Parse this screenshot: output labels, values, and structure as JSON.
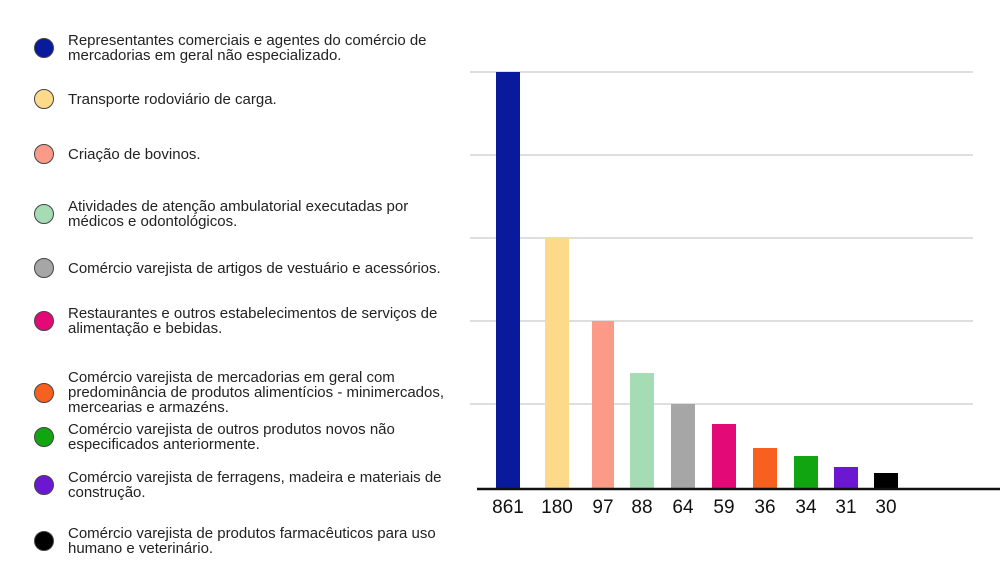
{
  "chart_data": {
    "type": "bar",
    "title": "",
    "xlabel": "",
    "ylabel": "",
    "grid": true,
    "legend_placement": "left",
    "categories": [
      "Representantes comerciais e agentes do comércio de mercadorias em geral não especializado.",
      "Transporte rodoviário de carga.",
      "Criação de bovinos.",
      "Atividades de atenção ambulatorial executadas por médicos e odontológicos.",
      "Comércio varejista de artigos de vestuário e acessórios.",
      "Restaurantes e outros estabelecimentos de serviços de alimentação e bebidas.",
      "Comércio varejista de mercadorias em geral com predominância de produtos alimentícios - minimercados, mercearias e armazéns.",
      "Comércio varejista de outros produtos novos não especificados anteriormente.",
      "Comércio varejista de ferragens, madeira e materiais de construção.",
      "Comércio varejista de produtos farmacêuticos para uso humano e veterinário."
    ],
    "values": [
      861,
      180,
      97,
      88,
      64,
      59,
      36,
      34,
      31,
      30
    ],
    "value_labels": [
      "861",
      "180",
      "97",
      "88",
      "64",
      "59",
      "36",
      "34",
      "31",
      "30"
    ],
    "colors": [
      "#0a1a9c",
      "#fdd98a",
      "#fb9a87",
      "#a6dcb4",
      "#a6a6a6",
      "#e30a78",
      "#f7601f",
      "#12a512",
      "#6c18d2",
      "#000000"
    ]
  }
}
